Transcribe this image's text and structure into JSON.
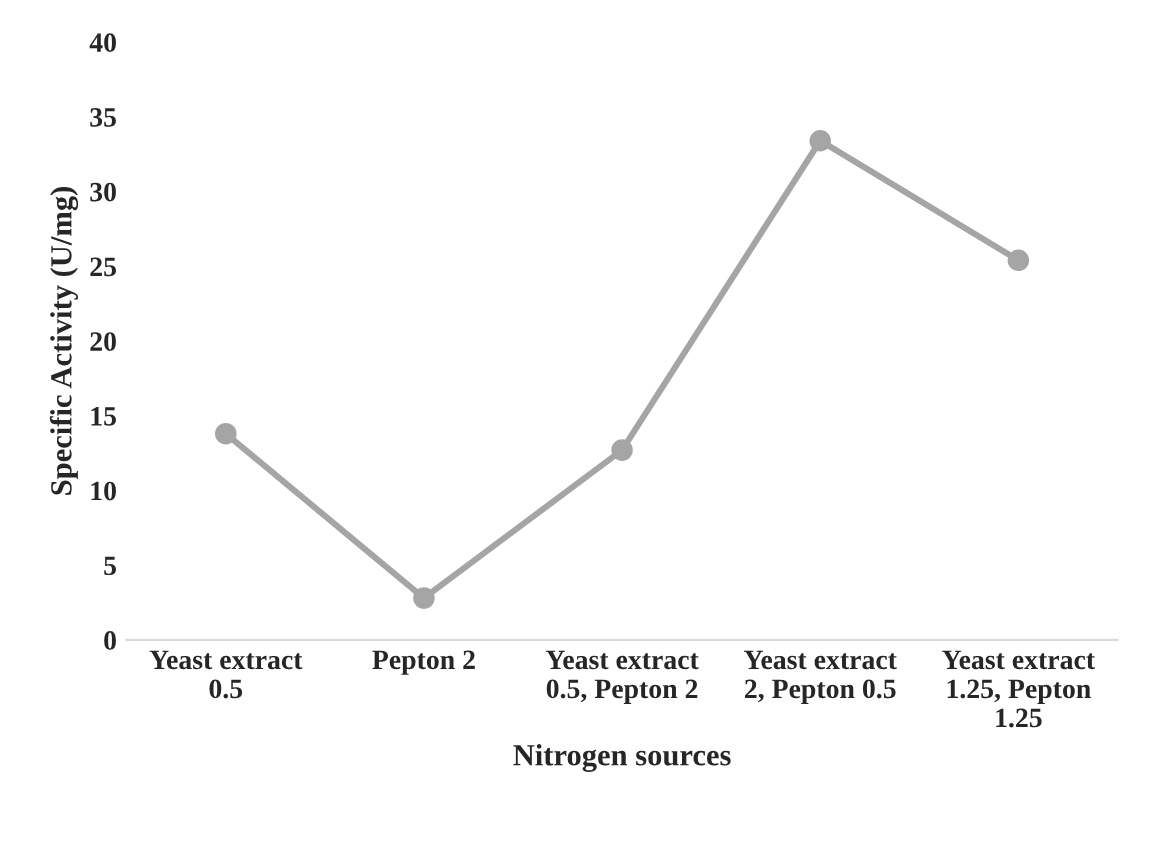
{
  "chart_data": {
    "type": "line",
    "xlabel": "Nitrogen sources",
    "ylabel": "Specific Activity (U/mg)",
    "categories": [
      "Yeast extract\n0.5",
      "Pepton 2",
      "Yeast extract\n0.5, Pepton 2",
      "Yeast extract\n2, Pepton 0.5",
      "Yeast extract\n1.25, Pepton\n1.25"
    ],
    "series": [
      {
        "color": "#a5a5a5",
        "values": [
          13.8,
          2.8,
          12.7,
          33.4,
          25.4
        ]
      }
    ],
    "ylim": [
      0,
      40
    ],
    "yticks": [
      0,
      5,
      10,
      15,
      20,
      25,
      30,
      35,
      40
    ],
    "grid": false,
    "legend": false,
    "marker": "circle",
    "line_style": "solid"
  }
}
